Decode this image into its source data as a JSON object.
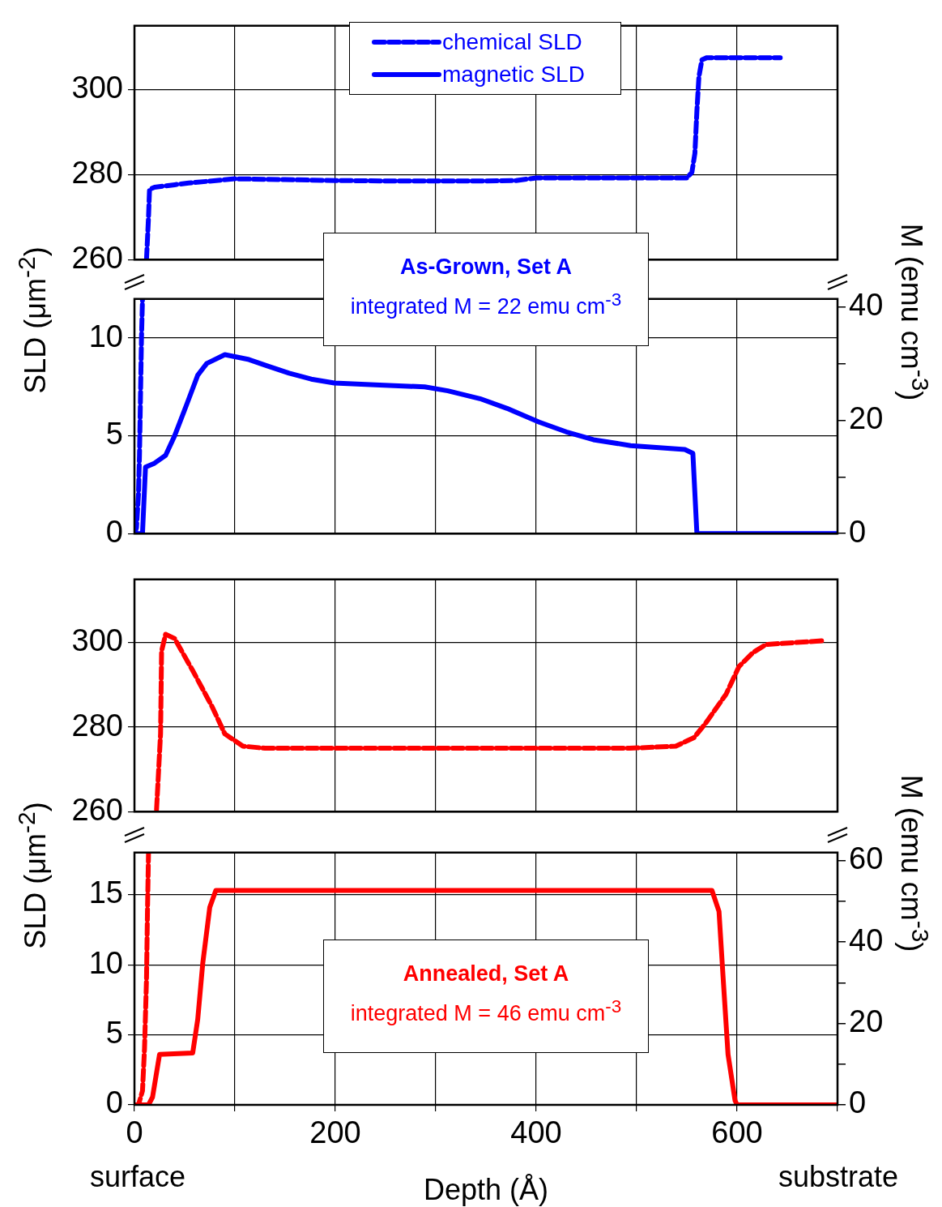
{
  "chart_data": [
    {
      "type": "line",
      "xlim": [
        0,
        700
      ],
      "xticks": [
        0,
        {
          "value": 100,
          "label": null
        },
        200,
        {
          "value": 300,
          "label": null
        },
        400,
        {
          "value": 500,
          "label": null
        },
        600,
        {
          "value": 700,
          "label": null
        }
      ],
      "ylim": [
        260,
        315
      ],
      "yticks": [
        260,
        280,
        300
      ],
      "grid": true,
      "tick_labels": "y",
      "legend": "top",
      "marker": "none",
      "series": [
        {
          "name": "chemical SLD",
          "color": "#0000ff",
          "line_style": "dashed",
          "x": [
            12,
            14,
            15,
            20,
            40,
            54,
            100,
            150,
            200,
            250,
            300,
            350,
            380,
            400,
            450,
            500,
            550,
            555,
            558,
            560,
            562,
            565,
            570,
            643
          ],
          "values": [
            260,
            270,
            276.5,
            277,
            277.6,
            278,
            279,
            278.8,
            278.6,
            278.5,
            278.5,
            278.5,
            278.6,
            279.2,
            279.2,
            279.2,
            279.2,
            280.5,
            285,
            295,
            303,
            307,
            307.5,
            307.5
          ]
        }
      ]
    },
    {
      "type": "line",
      "xlim": [
        0,
        700
      ],
      "xticks": [
        0,
        {
          "value": 100,
          "label": null
        },
        200,
        {
          "value": 300,
          "label": null
        },
        400,
        {
          "value": 500,
          "label": null
        },
        600,
        {
          "value": 700,
          "label": null
        }
      ],
      "ylim": [
        0,
        12
      ],
      "yticks": [
        0,
        5,
        10
      ],
      "y2lim": [
        0,
        41.4
      ],
      "y2ticks": [
        0,
        {
          "value": 10,
          "label": null
        },
        20,
        {
          "value": 30,
          "label": null
        },
        40
      ],
      "grid": true,
      "tick_labels": "y",
      "legend": "top",
      "marker": "none",
      "ylabel": "SLD (μm$^{-2}$)",
      "y2label": "M (emu cm$^{-3}$)",
      "annotations": [
        "As-Grown, Set A",
        "integrated M = 22 emu cm$^{-3}$"
      ],
      "series": [
        {
          "color": "#0000ff",
          "line_style": "dashed",
          "x": [
            0,
            2,
            4,
            5,
            6,
            7,
            8
          ],
          "values": [
            0,
            0.3,
            2,
            4,
            7,
            10,
            12
          ]
        },
        {
          "name": "magnetic SLD",
          "color": "#0000ff",
          "line_style": "solid",
          "x": [
            0,
            8,
            11,
            20,
            31,
            40,
            52,
            63,
            72,
            90,
            114,
            131,
            154,
            176,
            199,
            244,
            289,
            312,
            344,
            371,
            403,
            430,
            457,
            494,
            548,
            556,
            560,
            700
          ],
          "values": [
            0,
            0,
            3.4,
            3.6,
            4,
            5,
            6.6,
            8.1,
            8.7,
            9.15,
            8.9,
            8.6,
            8.2,
            7.9,
            7.7,
            7.6,
            7.5,
            7.3,
            6.9,
            6.4,
            5.7,
            5.2,
            4.8,
            4.5,
            4.3,
            4.1,
            0,
            0
          ]
        }
      ]
    },
    {
      "type": "line",
      "xlim": [
        0,
        700
      ],
      "xticks": [
        0,
        {
          "value": 100,
          "label": null
        },
        200,
        {
          "value": 300,
          "label": null
        },
        400,
        {
          "value": 500,
          "label": null
        },
        600,
        {
          "value": 700,
          "label": null
        }
      ],
      "ylim": [
        260,
        315
      ],
      "yticks": [
        260,
        280,
        300
      ],
      "grid": true,
      "tick_labels": "y",
      "marker": "none",
      "series": [
        {
          "color": "#ff0000",
          "line_style": "dashed",
          "x": [
            22,
            26,
            27,
            31,
            40,
            58,
            77,
            90,
            108,
            130,
            200,
            300,
            400,
            493,
            539,
            557,
            568,
            589,
            602,
            616,
            629,
            688
          ],
          "values": [
            260.5,
            278.5,
            298,
            302,
            301,
            293.4,
            285,
            278.4,
            275.5,
            275,
            275,
            275,
            275,
            275,
            275.5,
            277.5,
            280.7,
            287.8,
            294.4,
            297.7,
            299.6,
            300.5
          ]
        }
      ]
    },
    {
      "type": "line",
      "xlim": [
        0,
        700
      ],
      "xticks": [
        0,
        {
          "value": 100,
          "label": null
        },
        200,
        {
          "value": 300,
          "label": null
        },
        400,
        {
          "value": 500,
          "label": null
        },
        600,
        {
          "value": 700,
          "label": null
        }
      ],
      "ylim": [
        0,
        18
      ],
      "yticks": [
        0,
        5,
        10,
        15
      ],
      "y2lim": [
        0,
        62
      ],
      "y2ticks": [
        0,
        {
          "value": 10,
          "label": null
        },
        20,
        {
          "value": 30,
          "label": null
        },
        40,
        {
          "value": 50,
          "label": null
        },
        60
      ],
      "grid": true,
      "marker": "none",
      "xlabel": "Depth (Å)",
      "ylabel": "SLD (μm$^{-2}$)",
      "y2label": "M (emu cm$^{-3}$)",
      "annotations": [
        "Annealed, Set A",
        "integrated M = 46 emu cm$^{-3}$",
        "surface",
        "substrate"
      ],
      "series": [
        {
          "color": "#ff0000",
          "line_style": "dashed",
          "x": [
            0,
            4,
            8,
            10,
            12,
            13,
            14
          ],
          "values": [
            0,
            0,
            1,
            4,
            9,
            14,
            18
          ]
        },
        {
          "color": "#ff0000",
          "line_style": "solid",
          "x": [
            0,
            14,
            18,
            25,
            58,
            63,
            68,
            75,
            81,
            575,
            582,
            586,
            591,
            598,
            600,
            700
          ],
          "values": [
            0,
            0,
            0.55,
            3.6,
            3.7,
            6.1,
            10.1,
            14.1,
            15.3,
            15.3,
            13.8,
            9.2,
            3.6,
            0.3,
            0,
            0
          ]
        }
      ]
    }
  ]
}
